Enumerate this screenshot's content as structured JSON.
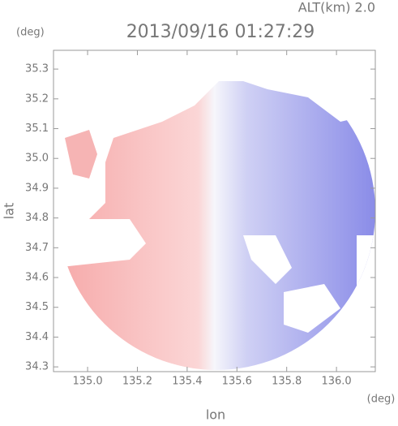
{
  "chart_data": {
    "type": "image",
    "title": "2013/09/16 01:27:29",
    "annotation": "ALT(km) 2.0",
    "y_unit": "(deg)",
    "x_unit": "(deg)",
    "xlabel": "lon",
    "ylabel": "lat",
    "xlim": [
      134.863,
      136.156
    ],
    "xticks": [
      {
        "value": 135.0,
        "label": "135.0"
      },
      135.2,
      135.4,
      135.6,
      135.8,
      {
        "value": 136.0,
        "label": "136.0"
      }
    ],
    "ylim": [
      34.284,
      35.363
    ],
    "yticks": [
      34.3,
      34.4,
      34.5,
      34.6,
      34.7,
      34.8,
      34.9,
      {
        "value": 35.0,
        "label": "35.0"
      },
      35.1,
      35.2,
      35.3
    ],
    "grid": false
  }
}
